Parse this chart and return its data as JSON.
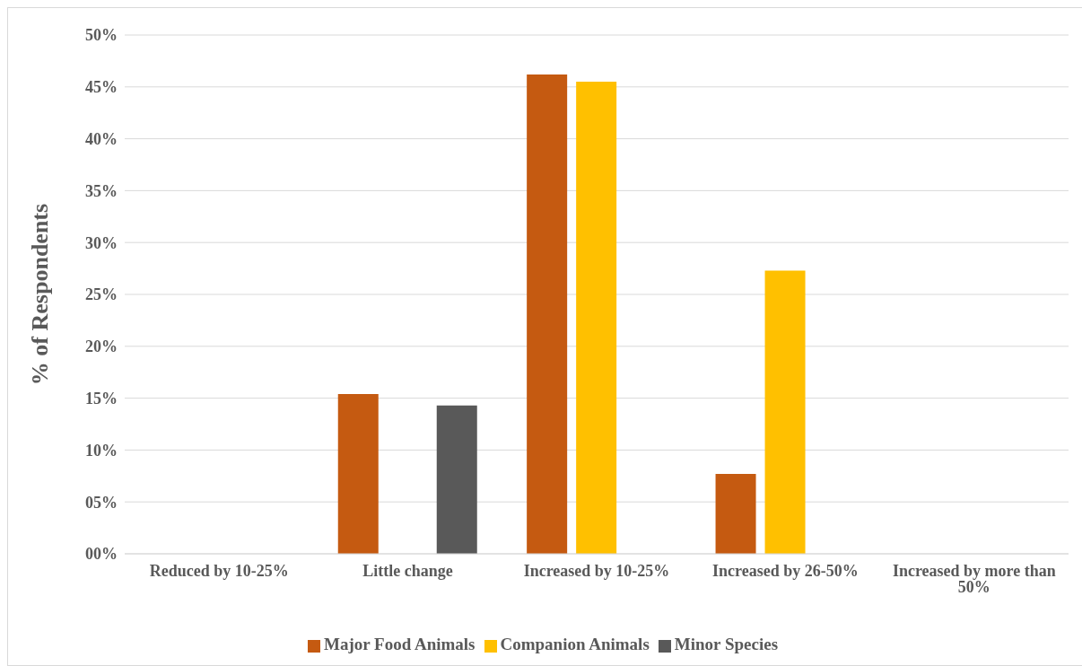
{
  "chart_data": {
    "type": "bar",
    "ylabel": "% of Respondents",
    "categories": [
      "Reduced by 10-25%",
      "Little change",
      "Increased by 10-25%",
      "Increased by 26-50%",
      "Increased by more than 50%"
    ],
    "series": [
      {
        "name": "Major Food Animals",
        "color": "#c55a11",
        "values": [
          0,
          15.4,
          46.2,
          7.7,
          0
        ]
      },
      {
        "name": "Companion Animals",
        "color": "#ffc000",
        "values": [
          0,
          0,
          45.5,
          27.3,
          0
        ]
      },
      {
        "name": "Minor Species",
        "color": "#595959",
        "values": [
          0,
          14.3,
          0,
          0,
          0
        ]
      }
    ],
    "ylim": [
      0,
      50
    ],
    "yticks": [
      {
        "value": 0,
        "label": "00%"
      },
      {
        "value": 5,
        "label": "05%"
      },
      {
        "value": 10,
        "label": "10%"
      },
      {
        "value": 15,
        "label": "15%"
      },
      {
        "value": 20,
        "label": "20%"
      },
      {
        "value": 25,
        "label": "25%"
      },
      {
        "value": 30,
        "label": "30%"
      },
      {
        "value": 35,
        "label": "35%"
      },
      {
        "value": 40,
        "label": "40%"
      },
      {
        "value": 45,
        "label": "45%"
      },
      {
        "value": 50,
        "label": "50%"
      }
    ],
    "grid": "y",
    "legend": "bottom"
  }
}
